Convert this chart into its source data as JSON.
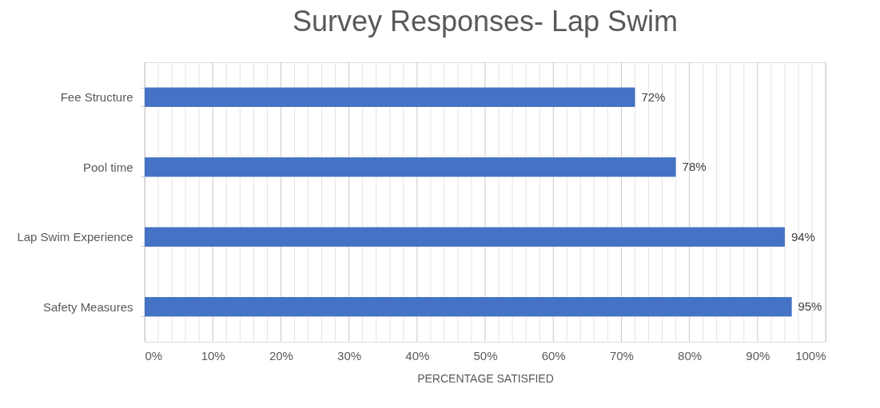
{
  "chart_data": {
    "type": "bar",
    "orientation": "horizontal",
    "title": "Survey Responses- Lap Swim",
    "xlabel": "PERCENTAGE SATISFIED",
    "categories": [
      "Fee Structure",
      "Pool time",
      "Lap Swim Experience",
      "Safety Measures"
    ],
    "values": [
      72,
      78,
      94,
      95
    ],
    "color": "#4472c4",
    "value_labels": [
      "72%",
      "78%",
      "94%",
      "95%"
    ],
    "xlim": [
      0,
      100
    ],
    "xticks": [
      {
        "value": 0,
        "label": "0%"
      },
      {
        "value": 2,
        "label": null
      },
      {
        "value": 4,
        "label": null
      },
      {
        "value": 6,
        "label": null
      },
      {
        "value": 8,
        "label": null
      },
      {
        "value": 10,
        "label": "10%"
      },
      {
        "value": 12,
        "label": null
      },
      {
        "value": 14,
        "label": null
      },
      {
        "value": 16,
        "label": null
      },
      {
        "value": 18,
        "label": null
      },
      {
        "value": 20,
        "label": "20%"
      },
      {
        "value": 22,
        "label": null
      },
      {
        "value": 24,
        "label": null
      },
      {
        "value": 26,
        "label": null
      },
      {
        "value": 28,
        "label": null
      },
      {
        "value": 30,
        "label": "30%"
      },
      {
        "value": 32,
        "label": null
      },
      {
        "value": 34,
        "label": null
      },
      {
        "value": 36,
        "label": null
      },
      {
        "value": 38,
        "label": null
      },
      {
        "value": 40,
        "label": "40%"
      },
      {
        "value": 42,
        "label": null
      },
      {
        "value": 44,
        "label": null
      },
      {
        "value": 46,
        "label": null
      },
      {
        "value": 48,
        "label": null
      },
      {
        "value": 50,
        "label": "50%"
      },
      {
        "value": 52,
        "label": null
      },
      {
        "value": 54,
        "label": null
      },
      {
        "value": 56,
        "label": null
      },
      {
        "value": 58,
        "label": null
      },
      {
        "value": 60,
        "label": "60%"
      },
      {
        "value": 62,
        "label": null
      },
      {
        "value": 64,
        "label": null
      },
      {
        "value": 66,
        "label": null
      },
      {
        "value": 68,
        "label": null
      },
      {
        "value": 70,
        "label": "70%"
      },
      {
        "value": 72,
        "label": null
      },
      {
        "value": 74,
        "label": null
      },
      {
        "value": 76,
        "label": null
      },
      {
        "value": 78,
        "label": null
      },
      {
        "value": 80,
        "label": "80%"
      },
      {
        "value": 82,
        "label": null
      },
      {
        "value": 84,
        "label": null
      },
      {
        "value": 86,
        "label": null
      },
      {
        "value": 88,
        "label": null
      },
      {
        "value": 90,
        "label": "90%"
      },
      {
        "value": 92,
        "label": null
      },
      {
        "value": 94,
        "label": null
      },
      {
        "value": 96,
        "label": null
      },
      {
        "value": 98,
        "label": null
      },
      {
        "value": 100,
        "label": "100%"
      }
    ],
    "grid": "x"
  }
}
